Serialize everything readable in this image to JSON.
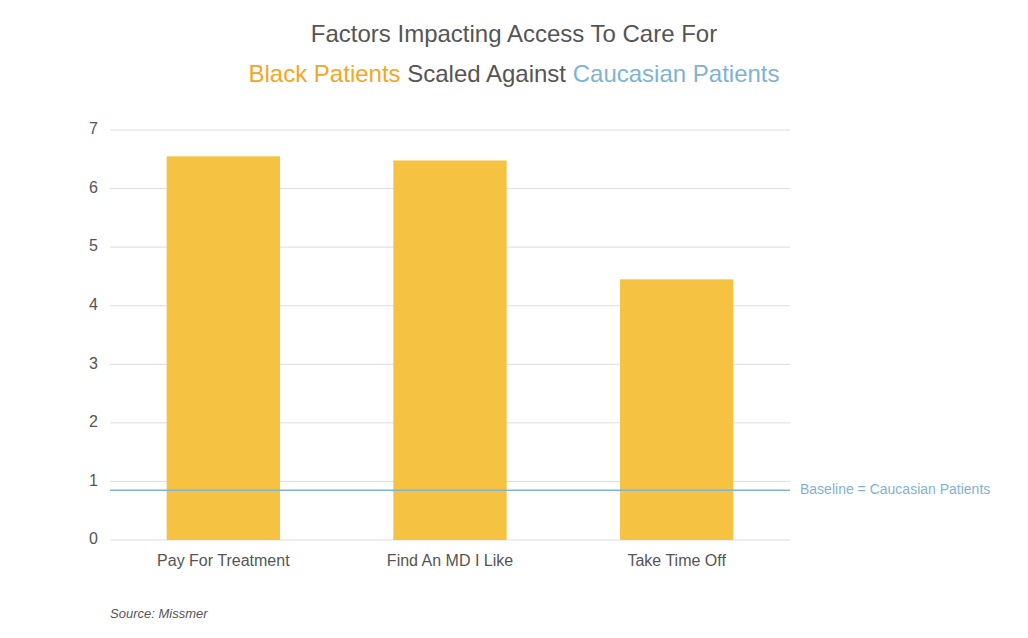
{
  "chart_data": {
    "type": "bar",
    "title": "Factors Impacting Access To Care For",
    "subtitle": [
      {
        "text": "Black Patients",
        "color": "#F5A623"
      },
      {
        "text": " Scaled Against ",
        "color": "#555555"
      },
      {
        "text": "Caucasian Patients",
        "color": "#7FB3D3"
      }
    ],
    "categories": [
      "Pay For Treatment",
      "Find An MD I Like",
      "Take Time Off"
    ],
    "values": [
      6.55,
      6.48,
      4.45
    ],
    "color": "#F5C242",
    "baseline": {
      "value": 0.85,
      "label": "Baseline = Caucasian Patients",
      "color": "#7FB3D3"
    },
    "ylim": [
      0,
      7
    ],
    "yticks": [
      0,
      1,
      2,
      3,
      4,
      5,
      6,
      7
    ],
    "grid": true,
    "source": "Source: Missmer"
  }
}
